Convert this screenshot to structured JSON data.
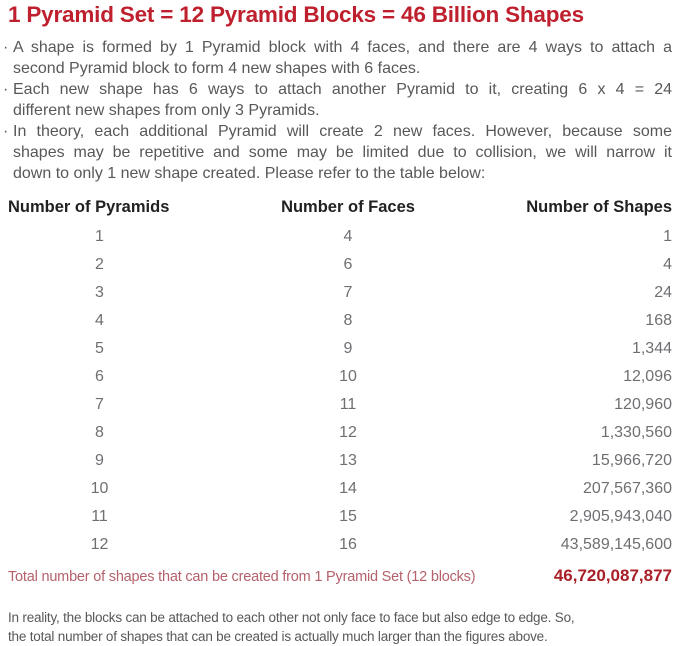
{
  "title": "1 Pyramid Set = 12 Pyramid Blocks = 46 Billion Shapes",
  "bullet_char": "·",
  "bullets": [
    {
      "lines": [
        "A shape is formed by 1 Pyramid block with 4 faces, and there are 4 ways to attach a",
        "second Pyramid block to form 4 new shapes with 6 faces."
      ]
    },
    {
      "lines": [
        "Each new shape has 6 ways to attach another Pyramid to it, creating 6 x 4 = 24",
        "different new shapes from only 3 Pyramids."
      ]
    },
    {
      "lines": [
        "In theory, each additional Pyramid will create 2 new faces. However, because some",
        "shapes may be repetitive and some may be limited due to collision, we will narrow it",
        "down to only 1 new shape created. Please refer to the table below:"
      ]
    }
  ],
  "table": {
    "headers": [
      "Number of Pyramids",
      "Number of Faces",
      "Number of Shapes"
    ],
    "rows": [
      {
        "pyramids": "1",
        "faces": "4",
        "shapes": "1"
      },
      {
        "pyramids": "2",
        "faces": "6",
        "shapes": "4"
      },
      {
        "pyramids": "3",
        "faces": "7",
        "shapes": "24"
      },
      {
        "pyramids": "4",
        "faces": "8",
        "shapes": "168"
      },
      {
        "pyramids": "5",
        "faces": "9",
        "shapes": "1,344"
      },
      {
        "pyramids": "6",
        "faces": "10",
        "shapes": "12,096"
      },
      {
        "pyramids": "7",
        "faces": "11",
        "shapes": "120,960"
      },
      {
        "pyramids": "8",
        "faces": "12",
        "shapes": "1,330,560"
      },
      {
        "pyramids": "9",
        "faces": "13",
        "shapes": "15,966,720"
      },
      {
        "pyramids": "10",
        "faces": "14",
        "shapes": "207,567,360"
      },
      {
        "pyramids": "11",
        "faces": "15",
        "shapes": "2,905,943,040"
      },
      {
        "pyramids": "12",
        "faces": "16",
        "shapes": "43,589,145,600"
      }
    ]
  },
  "total": {
    "label": "Total number of shapes that can be created from 1 Pyramid Set (12 blocks)",
    "value": "46,720,087,877"
  },
  "footer": {
    "lines": [
      "In reality, the blocks can be attached to each other not only face to face but also edge to edge. So,",
      "the total number of shapes that can be created is actually much larger than the figures above."
    ]
  },
  "colors": {
    "title_red": "#bf202e",
    "total_label": "#b4616b",
    "total_value": "#a91f27",
    "body_gray": "#58585a",
    "table_text": "#6e6f72",
    "header_dark": "#212121"
  }
}
